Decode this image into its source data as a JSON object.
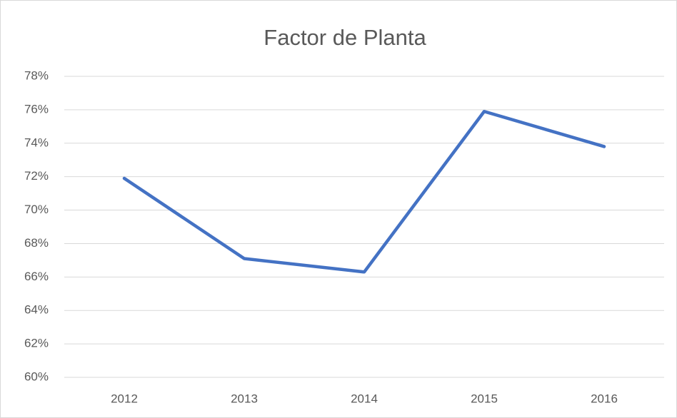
{
  "chart_data": {
    "type": "line",
    "title": "Factor de Planta",
    "categories": [
      "2012",
      "2013",
      "2014",
      "2015",
      "2016"
    ],
    "series": [
      {
        "name": "Factor de Planta",
        "color": "#4472c4",
        "values": [
          71.9,
          67.1,
          66.3,
          75.9,
          73.8
        ]
      }
    ],
    "ylim": [
      60,
      78
    ],
    "yticks": [
      {
        "value": 60,
        "label": "60%"
      },
      {
        "value": 62,
        "label": "62%"
      },
      {
        "value": 64,
        "label": "64%"
      },
      {
        "value": 66,
        "label": "66%"
      },
      {
        "value": 68,
        "label": "68%"
      },
      {
        "value": 70,
        "label": "70%"
      },
      {
        "value": 72,
        "label": "72%"
      },
      {
        "value": 74,
        "label": "74%"
      },
      {
        "value": 76,
        "label": "76%"
      },
      {
        "value": 78,
        "label": "78%"
      }
    ],
    "grid": true
  }
}
